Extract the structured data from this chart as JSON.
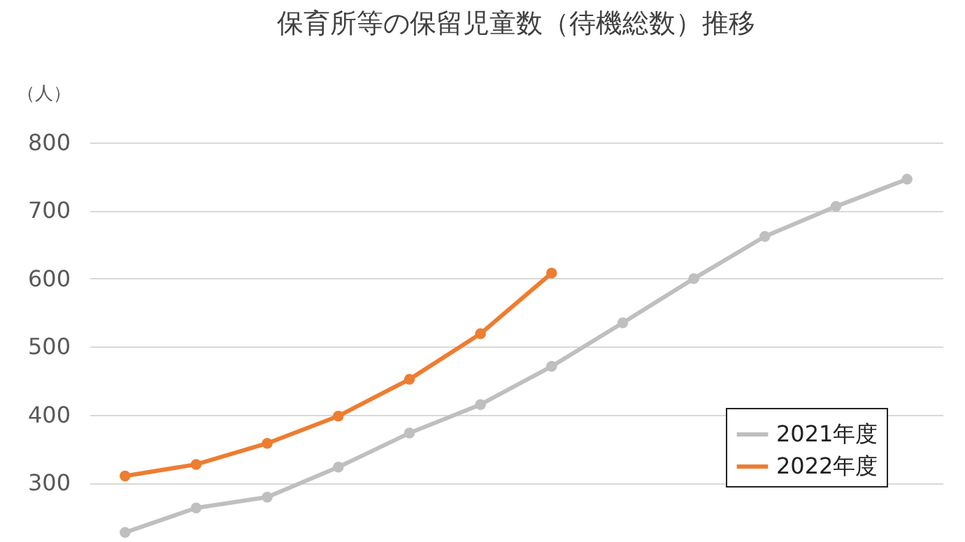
{
  "chart_data": {
    "type": "line",
    "title": "保育所等の保留児童数（待機総数）推移",
    "ylabel": "（人）",
    "categories": [
      null,
      null,
      null,
      null,
      null,
      null,
      null,
      null,
      null,
      null,
      null,
      null
    ],
    "series": [
      {
        "name": "2021年度",
        "color": "#bfbfbf",
        "values": [
          227,
          263,
          279,
          323,
          373,
          415,
          471,
          535,
          600,
          662,
          706,
          746
        ]
      },
      {
        "name": "2022年度",
        "color": "#ed7d31",
        "values": [
          310,
          327,
          358,
          398,
          452,
          519,
          608,
          null,
          null,
          null,
          null,
          null
        ]
      }
    ],
    "ylim": [
      213,
      800
    ],
    "yticks": [
      300,
      400,
      500,
      600,
      700,
      800
    ],
    "grid": "y",
    "legend": "bottom right",
    "marker": "circle",
    "line_style": "solid",
    "tick_labels": "y"
  }
}
